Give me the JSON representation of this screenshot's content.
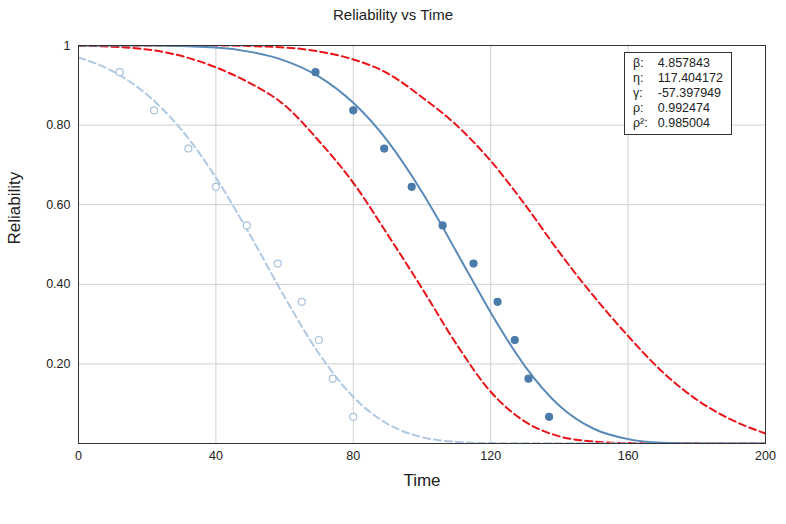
{
  "chart_data": {
    "type": "line",
    "title": "Reliability vs Time",
    "x_label": "Time",
    "y_label": "Reliability",
    "xlim": [
      0,
      200
    ],
    "xticks": [
      0,
      40,
      80,
      120,
      160,
      200
    ],
    "ylim": [
      0,
      1
    ],
    "yticks": [
      {
        "value": 0.2,
        "label": "0.20"
      },
      {
        "value": 0.4,
        "label": "0.40"
      },
      {
        "value": 0.6,
        "label": "0.60"
      },
      {
        "value": 0.8,
        "label": "0.80"
      },
      1
    ],
    "grid": true,
    "parameters": [
      {
        "label": "β:",
        "value": 4.857843
      },
      {
        "label": "η:",
        "value": 117.404172
      },
      {
        "label": "γ:",
        "value": -57.397949
      },
      {
        "label": "ρ:",
        "value": 0.992474
      },
      {
        "label": "ρ²:",
        "value": 0.985004
      }
    ],
    "series": [
      {
        "type": "line",
        "color": "#e8141a",
        "line_style": "dashed",
        "x": [
          0,
          20,
          40,
          50,
          60,
          70,
          80,
          90,
          100,
          110,
          120,
          130,
          140,
          150,
          160,
          200
        ],
        "values": [
          1.0,
          0.99,
          0.945,
          0.905,
          0.85,
          0.76,
          0.655,
          0.525,
          0.39,
          0.25,
          0.13,
          0.055,
          0.018,
          0.005,
          0.001,
          0
        ]
      },
      {
        "type": "line",
        "color": "#e8141a",
        "line_style": "dashed",
        "x": [
          0,
          40,
          60,
          70,
          80,
          90,
          100,
          110,
          120,
          130,
          140,
          150,
          160,
          170,
          180,
          190,
          200
        ],
        "values": [
          1.0,
          1.0,
          0.995,
          0.985,
          0.965,
          0.93,
          0.87,
          0.8,
          0.71,
          0.6,
          0.48,
          0.37,
          0.27,
          0.18,
          0.11,
          0.06,
          0.025
        ]
      },
      {
        "type": "line",
        "color": "#b0c8e2",
        "line_style": "dashed",
        "x": [
          0,
          10,
          20,
          30,
          40,
          50,
          60,
          70,
          80,
          90,
          100,
          110,
          120,
          200
        ],
        "values": [
          0.97,
          0.935,
          0.876,
          0.788,
          0.668,
          0.523,
          0.368,
          0.226,
          0.117,
          0.049,
          0.016,
          0.004,
          0.001,
          0
        ]
      },
      {
        "type": "scatter",
        "color": "#a9c3dd",
        "marker": "open_circle",
        "x": [
          12,
          22,
          32,
          40,
          49,
          58,
          65,
          70,
          74,
          80
        ],
        "values": [
          0.933,
          0.837,
          0.741,
          0.645,
          0.548,
          0.452,
          0.356,
          0.26,
          0.163,
          0.067
        ]
      },
      {
        "type": "line",
        "color": "#5a8ab8",
        "line_style": "solid",
        "x": [
          0,
          20,
          40,
          50,
          60,
          70,
          80,
          90,
          100,
          105,
          110,
          115,
          120,
          130,
          140,
          150,
          160,
          170,
          180,
          200
        ],
        "values": [
          1.0,
          1.0,
          0.995,
          0.984,
          0.962,
          0.922,
          0.856,
          0.76,
          0.632,
          0.559,
          0.482,
          0.405,
          0.329,
          0.194,
          0.095,
          0.037,
          0.011,
          0.002,
          0,
          0
        ]
      },
      {
        "type": "scatter",
        "color": "#4a7bab",
        "marker": "circle",
        "x": [
          69,
          80,
          89,
          97,
          106,
          115,
          122,
          127,
          131,
          137
        ],
        "values": [
          0.933,
          0.837,
          0.741,
          0.645,
          0.548,
          0.452,
          0.356,
          0.26,
          0.163,
          0.067
        ]
      }
    ]
  }
}
